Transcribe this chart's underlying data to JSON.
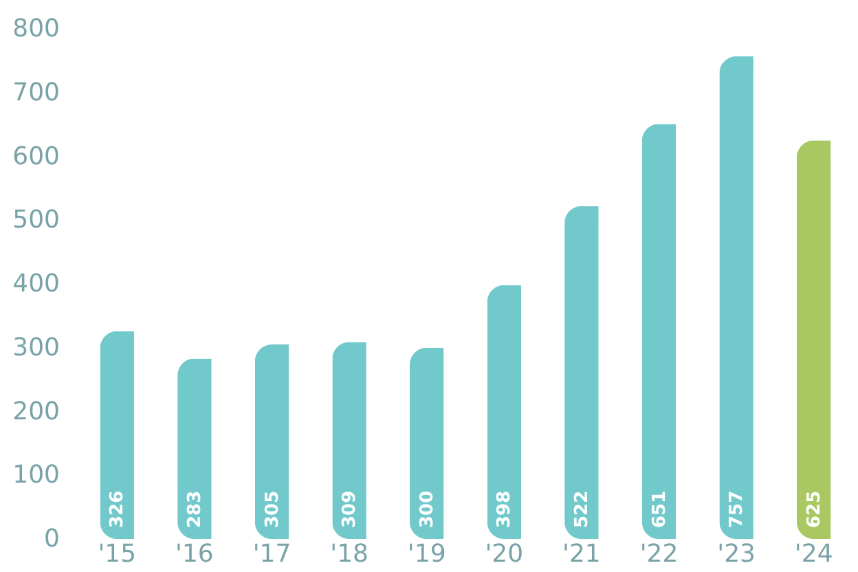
{
  "chart_data": {
    "type": "bar",
    "categories": [
      "'15",
      "'16",
      "'17",
      "'18",
      "'19",
      "'20",
      "'21",
      "'22",
      "'23",
      "'24"
    ],
    "values": [
      326,
      283,
      305,
      309,
      300,
      398,
      522,
      651,
      757,
      625
    ],
    "colors": [
      "#72c9cc",
      "#72c9cc",
      "#72c9cc",
      "#72c9cc",
      "#72c9cc",
      "#72c9cc",
      "#72c9cc",
      "#72c9cc",
      "#72c9cc",
      "#a9c862"
    ],
    "ylim": [
      0,
      800
    ],
    "yticks": [
      0,
      100,
      200,
      300,
      400,
      500,
      600,
      700,
      800
    ],
    "grid": false,
    "data_labels": true
  }
}
